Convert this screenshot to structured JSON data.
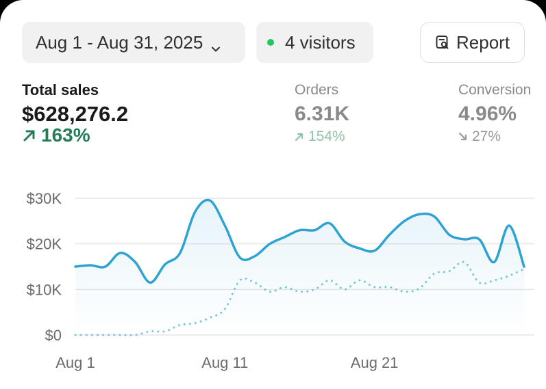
{
  "toolbar": {
    "date_range": "Aug 1 - Aug 31, 2025",
    "visitors": "4 visitors",
    "report_label": "Report"
  },
  "metrics": {
    "total_sales": {
      "label": "Total sales",
      "value": "$628,276.2",
      "delta": "163%"
    },
    "orders": {
      "label": "Orders",
      "value": "6.31K",
      "delta": "154%"
    },
    "conversion": {
      "label": "Conversion",
      "value": "4.96%",
      "delta": "27%"
    }
  },
  "colors": {
    "accent_line": "#2ea3d3",
    "comparison_line": "#7ac6da",
    "positive": "#247d57",
    "live_dot": "#22c55e"
  },
  "chart_data": {
    "type": "line",
    "x_ticks": [
      "Aug 1",
      "Aug 11",
      "Aug 21"
    ],
    "x_tick_days": [
      1,
      11,
      21
    ],
    "y_ticks": [
      "$30K",
      "$20K",
      "$10K",
      "$0"
    ],
    "y_tick_values": [
      30000,
      20000,
      10000,
      0
    ],
    "ylim": [
      0,
      30000
    ],
    "xlim": [
      1,
      31
    ],
    "grid": true,
    "series": [
      {
        "style": "solid",
        "x": [
          1,
          2,
          3,
          4,
          5,
          6,
          7,
          8,
          9,
          10,
          11,
          12,
          13,
          14,
          15,
          16,
          17,
          18,
          19,
          20,
          21,
          22,
          23,
          24,
          25,
          26,
          27,
          28,
          29,
          30,
          31
        ],
        "values": [
          15000,
          15300,
          15000,
          18000,
          16000,
          11500,
          15500,
          18000,
          27000,
          29500,
          24000,
          17000,
          17300,
          20000,
          21500,
          23000,
          23000,
          24500,
          20500,
          19000,
          18500,
          22000,
          25000,
          26500,
          26000,
          22000,
          21000,
          21000,
          16000,
          24000,
          15000
        ]
      },
      {
        "style": "dotted",
        "x": [
          1,
          2,
          3,
          4,
          5,
          6,
          7,
          8,
          9,
          10,
          11,
          12,
          13,
          14,
          15,
          16,
          17,
          18,
          19,
          20,
          21,
          22,
          23,
          24,
          25,
          26,
          27,
          28,
          29,
          30,
          31
        ],
        "values": [
          0,
          0,
          0,
          0,
          0,
          800,
          800,
          2200,
          2600,
          3800,
          5700,
          12000,
          11500,
          9500,
          10500,
          9500,
          10000,
          12000,
          10000,
          12000,
          10500,
          10500,
          9500,
          10200,
          13500,
          14000,
          16000,
          11500,
          12000,
          13000,
          14500
        ]
      }
    ]
  }
}
